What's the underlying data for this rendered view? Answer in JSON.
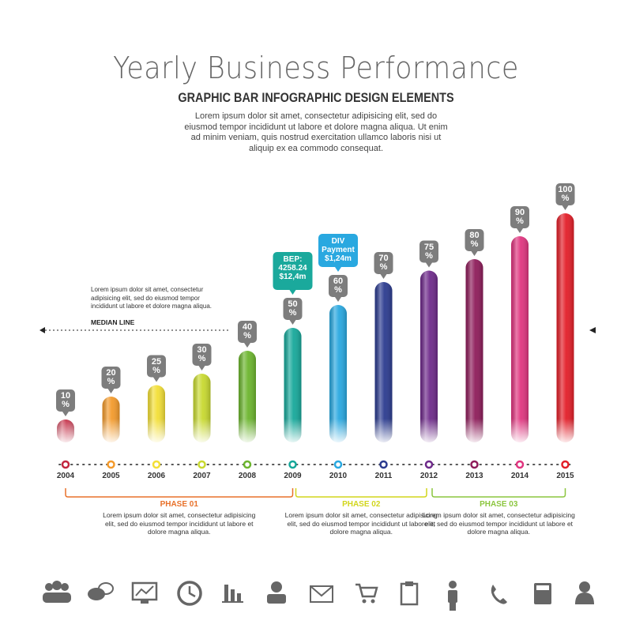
{
  "chart_data": {
    "type": "bar",
    "title": "Yearly Business Performance",
    "subtitle": "GRAPHIC BAR INFOGRAPHIC DESIGN ELEMENTS",
    "description": "Lorem ipsum dolor sit amet, consectetur adipisicing elit, sed do eiusmod tempor incididunt ut labore et dolore magna aliqua. Ut enim ad minim veniam, quis nostrud exercitation ullamco laboris nisi ut aliquip ex ea commodo consequat.",
    "median_note": "Lorem ipsum dolor sit amet, consectetur adipisicing elit, sed do eiusmod tempor incididunt ut labore et dolore magna aliqua.",
    "median_label": "MEDIAN LINE",
    "categories": [
      "2004",
      "2005",
      "2006",
      "2007",
      "2008",
      "2009",
      "2010",
      "2011",
      "2012",
      "2013",
      "2014",
      "2015"
    ],
    "values": [
      10,
      20,
      25,
      30,
      40,
      50,
      60,
      70,
      75,
      80,
      90,
      100
    ],
    "value_labels": [
      "10\n%",
      "20\n%",
      "25\n%",
      "30\n%",
      "40\n%",
      "50\n%",
      "60\n%",
      "70\n%",
      "75\n%",
      "80\n%",
      "90\n%",
      "100\n%"
    ],
    "colors": [
      "#c2263f",
      "#f39a2b",
      "#f3df36",
      "#c8d92f",
      "#6cb52e",
      "#16a89a",
      "#29a8e0",
      "#2b3b8f",
      "#6e2a8a",
      "#8e1c5a",
      "#e0357f",
      "#e31e28"
    ],
    "callouts": [
      {
        "text": "BEP:\n4258.24\n$12,4m",
        "color": "#1aa99c"
      },
      {
        "text": "DIV\nPayment\n$1,24m",
        "color": "#29a8e0"
      }
    ],
    "phases": [
      {
        "label": "PHASE 01",
        "text": "Lorem ipsum dolor sit amet, consectetur adipisicing elit, sed do eiusmod tempor incididunt ut labore et dolore magna aliqua.",
        "color": "#e8712a"
      },
      {
        "label": "PHASE 02",
        "text": "Lorem ipsum dolor sit amet, consectetur adipisicing elit, sed do eiusmod tempor incididunt ut labore et dolore magna aliqua.",
        "color": "#d2d61c"
      },
      {
        "label": "PHASE 03",
        "text": "Lorem ipsum dolor sit amet, consectetur adipisicing elit, sed do eiusmod tempor incididunt ut labore et dolore magna aliqua.",
        "color": "#8cc63f"
      }
    ]
  }
}
